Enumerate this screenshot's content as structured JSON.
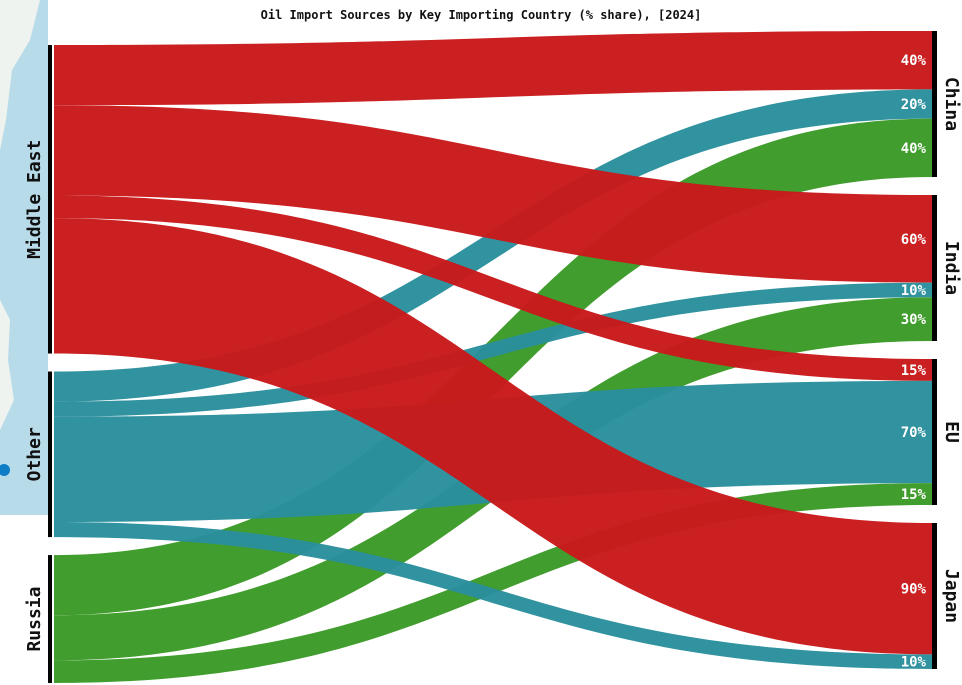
{
  "chart_data": {
    "type": "sankey",
    "title": "Oil Import Sources by Key Importing Country (% share), [2024]",
    "sources": [
      "Middle East",
      "Other",
      "Russia"
    ],
    "targets": [
      "China",
      "India",
      "EU",
      "Japan"
    ],
    "colors": {
      "Middle East": "#c8191b",
      "Other": "#2a8e9d",
      "Russia": "#3b9a26",
      "node_bar": "#000000",
      "map_water": "#b8dbe9"
    },
    "flows": [
      {
        "source": "Middle East",
        "target": "China",
        "value": 40,
        "label": "40%"
      },
      {
        "source": "Other",
        "target": "China",
        "value": 20,
        "label": "20%"
      },
      {
        "source": "Russia",
        "target": "China",
        "value": 40,
        "label": "40%"
      },
      {
        "source": "Middle East",
        "target": "India",
        "value": 60,
        "label": "60%"
      },
      {
        "source": "Other",
        "target": "India",
        "value": 10,
        "label": "10%"
      },
      {
        "source": "Russia",
        "target": "India",
        "value": 30,
        "label": "30%"
      },
      {
        "source": "Middle East",
        "target": "EU",
        "value": 15,
        "label": "15%"
      },
      {
        "source": "Other",
        "target": "EU",
        "value": 70,
        "label": "70%"
      },
      {
        "source": "Russia",
        "target": "EU",
        "value": 15,
        "label": "15%"
      },
      {
        "source": "Middle East",
        "target": "Japan",
        "value": 90,
        "label": "90%"
      },
      {
        "source": "Other",
        "target": "Japan",
        "value": 10,
        "label": "10%"
      }
    ]
  }
}
